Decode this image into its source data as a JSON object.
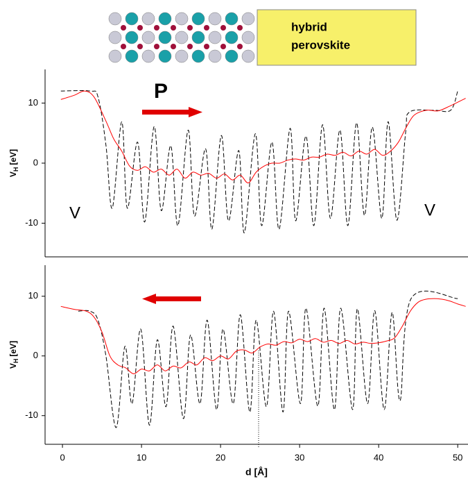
{
  "header": {
    "label_lines": [
      "hybrid",
      "perovskite"
    ]
  },
  "chart_data": [
    {
      "type": "line",
      "annotations": [
        "P",
        "V",
        "V"
      ],
      "ylabel": {
        "main": "V",
        "sub": "H",
        "unit": "[eV]"
      },
      "xlim": [
        -2.2,
        51.3
      ],
      "ylim": [
        -15.6,
        15.6
      ],
      "yticks": [
        -10,
        0,
        10
      ],
      "series": [
        {
          "color": "#000000",
          "style": "dashed",
          "x": [
            -0.2,
            3.5,
            4.5,
            5.5,
            6.3,
            7.5,
            8.2,
            9.5,
            10.4,
            11.6,
            12.5,
            13.7,
            14.6,
            15.9,
            16.7,
            18.1,
            18.9,
            20.1,
            21.0,
            22.3,
            23.0,
            24.4,
            25.2,
            26.5,
            27.4,
            28.8,
            29.5,
            30.8,
            31.8,
            32.9,
            33.9,
            35.1,
            36.1,
            37.2,
            38.2,
            39.2,
            40.4,
            41.2,
            42.3,
            43.4,
            43.9,
            47.0,
            49.1,
            50.0
          ],
          "values": [
            12,
            12,
            11,
            3,
            -7.5,
            6.9,
            -7.5,
            3.5,
            -9.8,
            6.1,
            -7.9,
            2.9,
            -10.4,
            5.5,
            -8.8,
            2.4,
            -11,
            4.6,
            -9.6,
            2.1,
            -11.6,
            4.9,
            -10.4,
            3.5,
            -11,
            5.8,
            -9.6,
            4.5,
            -10.4,
            6.4,
            -9.2,
            5.5,
            -10.4,
            6.7,
            -8.7,
            6,
            -9.2,
            6.9,
            -9.5,
            5,
            8.5,
            8.8,
            8.8,
            12
          ]
        },
        {
          "color": "#ff0000",
          "style": "solid",
          "x": [
            -0.2,
            1.5,
            2.8,
            4,
            5.5,
            6.5,
            7.5,
            8.5,
            9.5,
            10.5,
            11.5,
            12.5,
            13.5,
            14.5,
            15.5,
            16.5,
            17.5,
            18.5,
            19.5,
            20.5,
            21.5,
            22.5,
            23.5,
            24.5,
            25.5,
            26.5,
            27.5,
            28.5,
            29.5,
            30.5,
            31.5,
            32.5,
            33.5,
            34.5,
            35.5,
            36.5,
            37.5,
            38.5,
            39.5,
            40.5,
            41.5,
            42.5,
            43.5,
            44.5,
            46,
            47.5,
            49,
            51
          ],
          "values": [
            10.6,
            11.3,
            12,
            11,
            7,
            4,
            2,
            -0.5,
            -1.2,
            -0.6,
            -1.5,
            -1,
            -2,
            -1,
            -2.5,
            -1.5,
            -2,
            -1.7,
            -2.5,
            -1.8,
            -2.8,
            -2,
            -3.3,
            -1.5,
            -0.5,
            0,
            0,
            0.5,
            0.7,
            0.5,
            1,
            1,
            1.5,
            1.3,
            1.8,
            1.2,
            2,
            1.5,
            2.3,
            1.3,
            2,
            3.5,
            6,
            8,
            8.8,
            8.7,
            9.5,
            10.8
          ]
        }
      ]
    },
    {
      "type": "line",
      "xlabel": "d [Å]",
      "ylabel": {
        "main": "V",
        "sub": "H",
        "unit": "[eV]"
      },
      "xlim": [
        -2.2,
        51.3
      ],
      "ylim": [
        -14.8,
        15.2
      ],
      "xticks": [
        0,
        10,
        20,
        30,
        40,
        50
      ],
      "yticks": [
        -10,
        0,
        10
      ],
      "series": [
        {
          "color": "#000000",
          "style": "dashed",
          "x": [
            2,
            3.5,
            4.5,
            5.5,
            6.8,
            7.9,
            8.8,
            9.9,
            11,
            12,
            13.1,
            14,
            15.3,
            16.2,
            17.4,
            18.3,
            19.5,
            20.3,
            21.6,
            22.5,
            23.7,
            24.5,
            25.8,
            26.7,
            27.9,
            28.6,
            30.1,
            30.8,
            32.3,
            33.1,
            34.4,
            35.2,
            36.7,
            37.3,
            38.6,
            39.5,
            40.7,
            41.7,
            42.7,
            44.1,
            50
          ],
          "values": [
            7.5,
            7.5,
            6,
            0,
            -12,
            1.6,
            -8,
            4.5,
            -11.6,
            2.7,
            -8.5,
            5,
            -10.5,
            3.5,
            -8,
            6,
            -9,
            4.5,
            -8,
            6.9,
            -9.4,
            6,
            -8.5,
            7.5,
            -9.4,
            7.5,
            -8,
            8,
            -8.4,
            8,
            -9,
            8,
            -9,
            7.9,
            -8,
            7.6,
            -9,
            7.3,
            -7.5,
            9.6,
            9.6
          ]
        },
        {
          "color": "#ff0000",
          "style": "solid",
          "x": [
            -0.2,
            1.5,
            3,
            4,
            5,
            6,
            7,
            8,
            9,
            10,
            11,
            12,
            13,
            14,
            15,
            16,
            17,
            18,
            19,
            20,
            21,
            22,
            23,
            24,
            25,
            26,
            27,
            28,
            29,
            30,
            31,
            32,
            33,
            34,
            35,
            36,
            37,
            38,
            39,
            40,
            41,
            42,
            43,
            44,
            45,
            46,
            47,
            48,
            49,
            50,
            51
          ],
          "values": [
            8.3,
            7.8,
            7.5,
            6.5,
            4,
            0,
            -1.5,
            -2,
            -3,
            -2.2,
            -2.5,
            -1.5,
            -2.5,
            -1.7,
            -2,
            -1,
            -1.5,
            -0.3,
            -0.8,
            0,
            -0.5,
            0.8,
            1,
            0.5,
            1.5,
            2,
            1.8,
            2.4,
            2.2,
            2.8,
            2.4,
            2.9,
            2.3,
            2.6,
            2.1,
            2.6,
            2,
            2.3,
            2.1,
            2.2,
            2.5,
            3,
            5,
            7.5,
            9,
            9.5,
            9.6,
            9.5,
            9.2,
            8.7,
            8.3
          ]
        }
      ]
    }
  ]
}
